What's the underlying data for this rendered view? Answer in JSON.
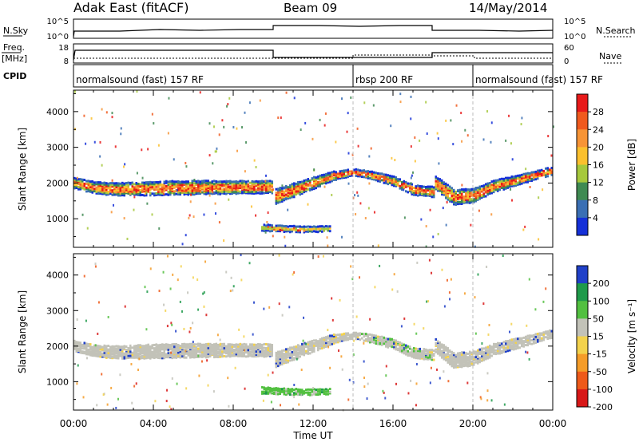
{
  "header": {
    "radar": "Adak East (fitACF)",
    "beam": "Beam 09",
    "date": "14/May/2014"
  },
  "strip": {
    "nsky_label": "N.Sky",
    "nsky_ticks": [
      "10^5",
      "10^0"
    ],
    "nsearch_label": "N.Search",
    "nsearch_ticks": [
      "10^5",
      "10^0"
    ],
    "freq_label": "Freq.",
    "freq_unit": "[MHz]",
    "freq_ticks": [
      "18",
      "8"
    ],
    "nave_label": "Nave",
    "nave_ticks": [
      "60",
      "0"
    ],
    "cpid_label": "CPID"
  },
  "cpid_segments": [
    {
      "label": "normalsound (fast) 157 RF",
      "start": 0,
      "end": 14
    },
    {
      "label": "rbsp 200 RF",
      "start": 14,
      "end": 20
    },
    {
      "label": "normalsound (fast) 157 RF",
      "start": 20,
      "end": 24
    }
  ],
  "colorbars": {
    "power": {
      "title": "Power [dB]",
      "ticks": [
        "28",
        "24",
        "20",
        "16",
        "12",
        "8",
        "4"
      ],
      "colors": [
        "#e81a1a",
        "#f05a1e",
        "#f79436",
        "#fbc02d",
        "#a6c83c",
        "#3f8a52",
        "#3a6fb4",
        "#1530d8"
      ]
    },
    "velocity": {
      "title": "Velocity [m s⁻¹]",
      "ticks": [
        "200",
        "100",
        "50",
        "15",
        "-15",
        "-50",
        "-100",
        "-200"
      ],
      "colors": [
        "#2040c8",
        "#1f9a4a",
        "#52c040",
        "#c2c2b8",
        "#f3d24c",
        "#f59c28",
        "#ee5a1a",
        "#d81818"
      ]
    }
  },
  "chart_data": {
    "type": "heatmap",
    "x_unit": "Time UT",
    "x_range": [
      0,
      24
    ],
    "x_ticks": [
      "00:00",
      "04:00",
      "08:00",
      "12:00",
      "16:00",
      "20:00",
      "00:00"
    ],
    "xlabel": "Time UT",
    "ylabel": "Slant Range [km]",
    "ylim": [
      200,
      4600
    ],
    "y_ticks": [
      1000,
      2000,
      3000,
      4000
    ],
    "mode_boundaries_hours": [
      14,
      20
    ],
    "panels": [
      {
        "name": "Power [dB]",
        "range": [
          0,
          30
        ]
      },
      {
        "name": "Velocity [m s⁻¹]",
        "range": [
          -200,
          200
        ]
      }
    ],
    "echo_bands": [
      {
        "t": [
          0,
          1,
          2,
          4,
          6,
          8,
          9.9
        ],
        "range_km": [
          2000,
          1870,
          1820,
          1850,
          1870,
          1880,
          1880
        ],
        "width_km": [
          260,
          300,
          320,
          360,
          360,
          330,
          320
        ]
      },
      {
        "t": [
          10,
          11,
          12,
          13,
          14,
          15,
          16,
          17,
          18
        ],
        "range_km": [
          1600,
          1800,
          2000,
          2200,
          2300,
          2200,
          2050,
          1800,
          1750
        ],
        "width_km": [
          400,
          350,
          300,
          220,
          160,
          200,
          240,
          250,
          260
        ]
      },
      {
        "t": [
          18,
          19,
          20,
          21,
          22,
          23,
          24
        ],
        "range_km": [
          2050,
          1600,
          1650,
          1900,
          2050,
          2200,
          2350
        ],
        "width_km": [
          350,
          400,
          360,
          300,
          260,
          220,
          200
        ]
      },
      {
        "t": [
          9.3,
          10.5,
          11.5,
          12.8
        ],
        "range_km": [
          750,
          720,
          700,
          720
        ],
        "width_km": [
          160,
          150,
          140,
          120
        ]
      }
    ]
  }
}
